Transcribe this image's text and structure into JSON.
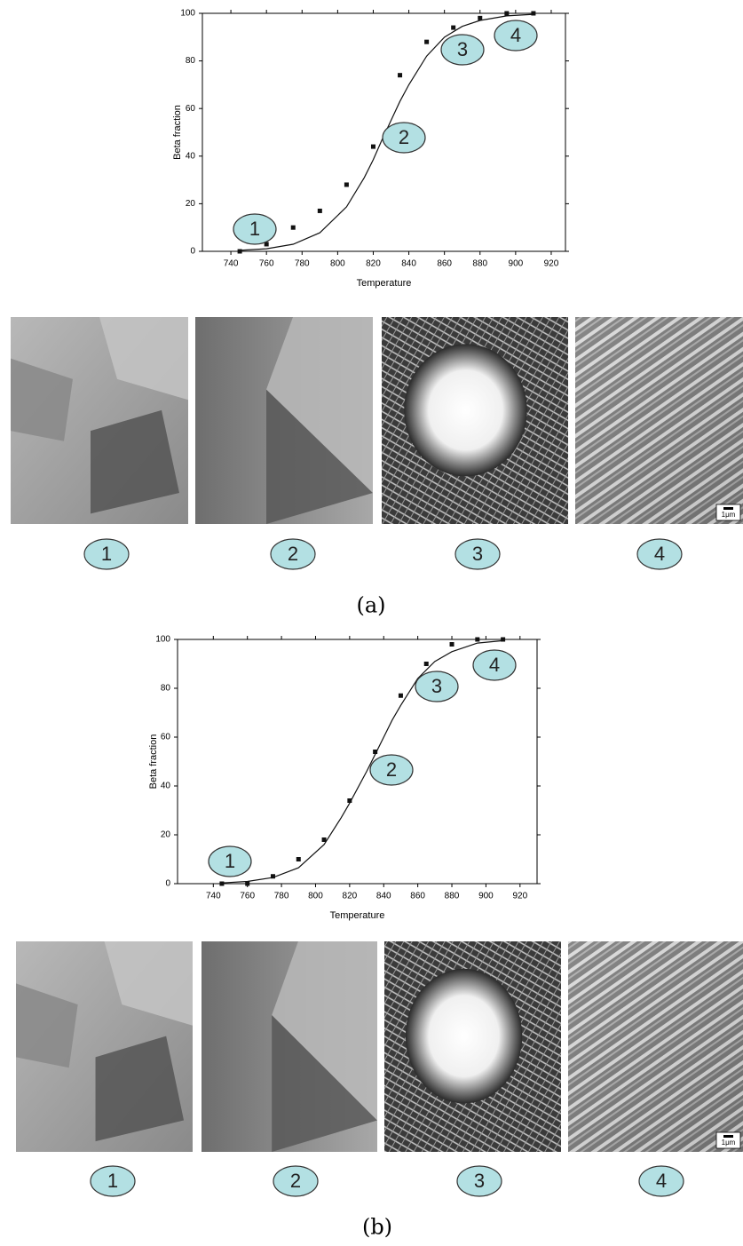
{
  "chart_data": [
    {
      "type": "scatter",
      "x_label": "Temperature",
      "y_label": "Beta fraction",
      "xlim": [
        724,
        928
      ],
      "ylim": [
        0,
        100
      ],
      "xticks": [
        740,
        760,
        780,
        800,
        820,
        840,
        860,
        880,
        900,
        920
      ],
      "yticks": [
        0,
        20,
        40,
        60,
        80,
        100
      ],
      "series": [
        {
          "type": "scatter",
          "color": "#111111",
          "x": [
            745,
            760,
            775,
            790,
            805,
            820,
            835,
            850,
            865,
            880,
            895,
            910
          ],
          "values": [
            0,
            3,
            10,
            17,
            28,
            44,
            74,
            88,
            94,
            98,
            100,
            100
          ]
        },
        {
          "type": "line",
          "color": "#111111",
          "x": [
            745,
            760,
            775,
            790,
            805,
            815,
            820,
            825,
            830,
            835,
            840,
            850,
            860,
            870,
            880,
            895,
            910
          ],
          "values": [
            0.4,
            1.1,
            3.0,
            7.8,
            18.7,
            31,
            38.5,
            47,
            55,
            63,
            70,
            82,
            90,
            94.5,
            97,
            98.9,
            99.6
          ]
        }
      ],
      "annotations": [
        "1",
        "2",
        "3",
        "4"
      ]
    },
    {
      "type": "scatter",
      "x_label": "Temperature",
      "y_label": "Beta fraction",
      "xlim": [
        719,
        930
      ],
      "ylim": [
        0,
        100
      ],
      "xticks": [
        740,
        760,
        780,
        800,
        820,
        840,
        860,
        880,
        900,
        920
      ],
      "yticks": [
        0,
        20,
        40,
        60,
        80,
        100
      ],
      "series": [
        {
          "type": "scatter",
          "color": "#111111",
          "x": [
            745,
            760,
            775,
            790,
            805,
            820,
            835,
            850,
            865,
            880,
            895,
            910
          ],
          "values": [
            0,
            0,
            3,
            10,
            18,
            34,
            54,
            77,
            90,
            98,
            100,
            100
          ]
        },
        {
          "type": "line",
          "color": "#111111",
          "x": [
            745,
            760,
            775,
            790,
            805,
            815,
            820,
            830,
            835,
            840,
            845,
            850,
            860,
            870,
            880,
            895,
            910
          ],
          "values": [
            0.3,
            0.9,
            2.5,
            6.5,
            16,
            27,
            33,
            46,
            53,
            60,
            67,
            73,
            84,
            91,
            95,
            98.5,
            99.5
          ]
        }
      ],
      "annotations": [
        "1",
        "2",
        "3",
        "4"
      ]
    }
  ],
  "panels": [
    {
      "label": "(a)",
      "images": [
        "1",
        "2",
        "3",
        "4"
      ],
      "scale_bar": "1μm"
    },
    {
      "label": "(b)",
      "images": [
        "1",
        "2",
        "3",
        "4"
      ],
      "scale_bar": "1μm"
    }
  ]
}
